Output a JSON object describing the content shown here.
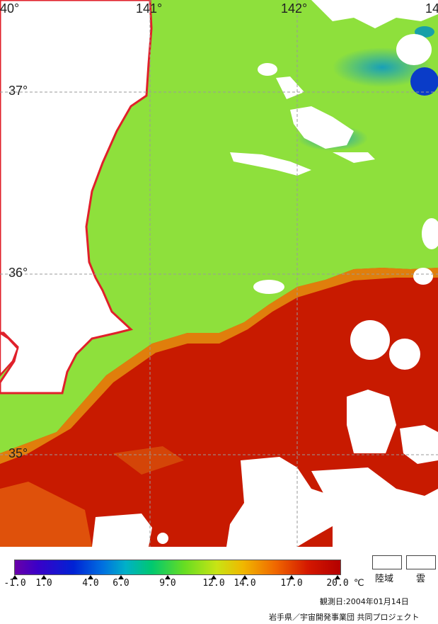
{
  "map": {
    "longitude_labels": [
      "40°",
      "141°",
      "142°",
      "14"
    ],
    "latitude_labels": [
      "37°",
      "36°",
      "35°"
    ],
    "colors": {
      "coast": "#e0202a",
      "land": "#ffffff",
      "grid": "#9a9a9a",
      "cold_green": "#7fe033",
      "mid_green": "#a0e62a",
      "warm_red": "#c81400",
      "warm_orange": "#e85a00",
      "cloud": "#ffffff"
    }
  },
  "legend": {
    "tick_labels": [
      "-1.0",
      "1.0",
      "4.0",
      "6.0",
      "9.0",
      "12.0",
      "14.0",
      "17.0",
      "20.0"
    ],
    "unit": "℃",
    "key_land": "陸域",
    "key_cloud": "雲",
    "observation_date": "観測日:2004年01月14日",
    "credit": "岩手県／宇宙開発事業団 共同プロジェクト"
  }
}
